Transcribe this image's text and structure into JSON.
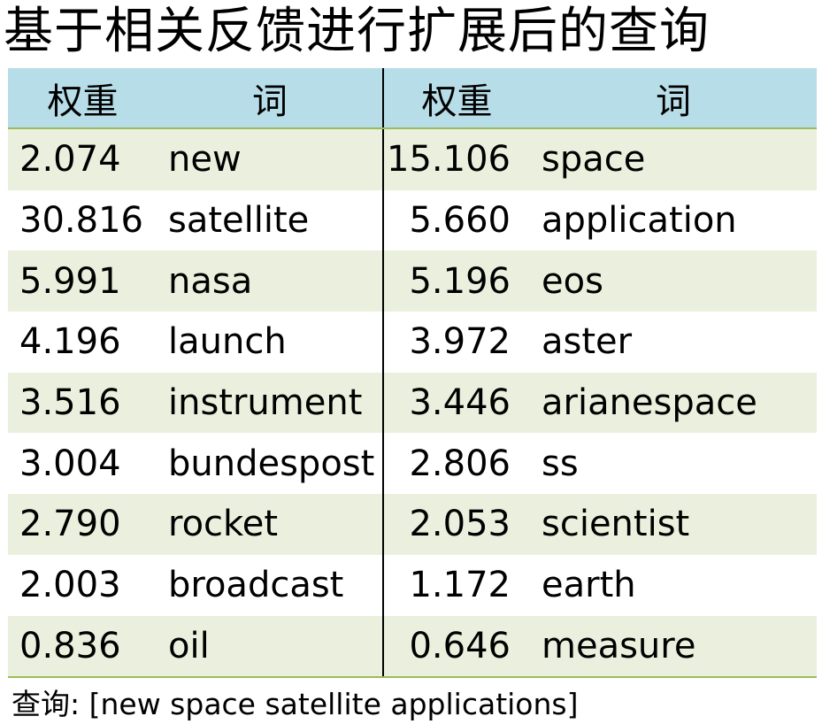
{
  "title": "基于相关反馈进行扩展后的查询",
  "table": {
    "headers": [
      "权重",
      "词",
      "权重",
      "词"
    ],
    "rows": [
      [
        "2.074",
        "new",
        "15.106",
        "space"
      ],
      [
        "30.816",
        "satellite",
        "5.660",
        "application"
      ],
      [
        "5.991",
        "nasa",
        "5.196",
        "eos"
      ],
      [
        "4.196",
        "launch",
        "3.972",
        "aster"
      ],
      [
        "3.516",
        "instrument",
        "3.446",
        "arianespace"
      ],
      [
        "3.004",
        "bundespost",
        "2.806",
        "ss"
      ],
      [
        "2.790",
        "rocket",
        "2.053",
        "scientist"
      ],
      [
        "2.003",
        "broadcast",
        "1.172",
        "earth"
      ],
      [
        "0.836",
        "oil",
        "0.646",
        "measure"
      ]
    ]
  },
  "query": "查询: [new space satellite applications]",
  "colors": {
    "header_bg": "#b7dde8",
    "band_bg": "#eaf0dd",
    "rule": "#9bbb59",
    "divider": "#000000"
  }
}
